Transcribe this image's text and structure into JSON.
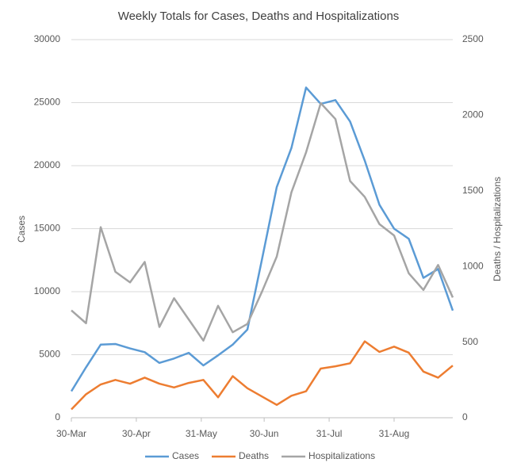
{
  "chart_data": {
    "type": "line",
    "title": "Weekly Totals for Cases, Deaths and Hospitalizations",
    "y_label": "Cases",
    "y2_label": "Deaths / Hospitalizations",
    "x": [
      0,
      7,
      14,
      21,
      28,
      35,
      42,
      49,
      56,
      63,
      70,
      77,
      84,
      91,
      98,
      105,
      112,
      119,
      126,
      133,
      140,
      147,
      154,
      161,
      168,
      175,
      182
    ],
    "xlim": [
      0,
      182
    ],
    "xticks": [
      {
        "value": 0,
        "label": "30-Mar"
      },
      {
        "value": 31,
        "label": "30-Apr"
      },
      {
        "value": 62,
        "label": "31-May"
      },
      {
        "value": 92,
        "label": "30-Jun"
      },
      {
        "value": 123,
        "label": "31-Jul"
      },
      {
        "value": 154,
        "label": "31-Aug"
      }
    ],
    "ylim": [
      0,
      30000
    ],
    "yticks": [
      0,
      5000,
      10000,
      15000,
      20000,
      25000,
      30000
    ],
    "y2lim": [
      0,
      2500
    ],
    "y2ticks": [
      0,
      500,
      1000,
      1500,
      2000,
      2500
    ],
    "grid": true,
    "legend": "bottom",
    "series": [
      {
        "name": "Cases",
        "color": "#5b9bd5",
        "axis": "y",
        "values": [
          2100,
          4000,
          5800,
          5850,
          5500,
          5200,
          4350,
          4700,
          5150,
          4150,
          4950,
          5800,
          7000,
          12600,
          18300,
          21400,
          26200,
          24900,
          25200,
          23500,
          20400,
          16900,
          15000,
          14200,
          11100,
          11800,
          8500
        ]
      },
      {
        "name": "Deaths",
        "color": "#ed7d31",
        "axis": "y2",
        "values": [
          55,
          155,
          220,
          250,
          225,
          265,
          225,
          200,
          230,
          250,
          135,
          275,
          195,
          140,
          85,
          145,
          175,
          325,
          340,
          360,
          505,
          435,
          470,
          430,
          305,
          265,
          345
        ]
      },
      {
        "name": "Hospitalizations",
        "color": "#a5a5a5",
        "axis": "y2",
        "values": [
          710,
          625,
          1260,
          965,
          895,
          1030,
          600,
          790,
          650,
          510,
          740,
          565,
          620,
          835,
          1065,
          1490,
          1755,
          2080,
          1975,
          1565,
          1460,
          1280,
          1205,
          955,
          845,
          1010,
          795
        ]
      }
    ]
  }
}
